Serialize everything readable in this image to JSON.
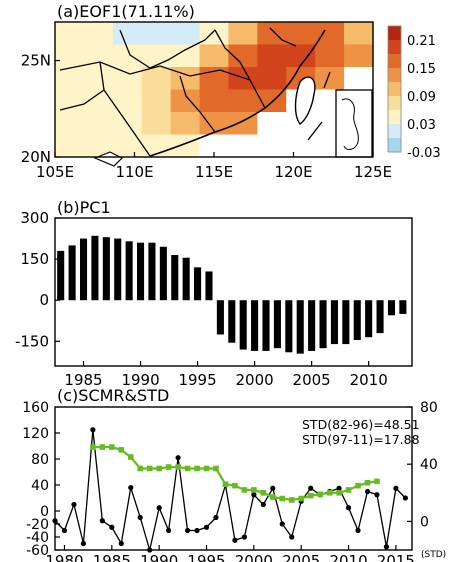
{
  "chart_data": [
    {
      "type": "heatmap",
      "title": "(a)EOF1(71.11%)",
      "x_ticks": [
        "105E",
        "110E",
        "115E",
        "120E",
        "125E"
      ],
      "y_ticks": [
        "20N",
        "25N"
      ],
      "x_range": [
        105,
        125
      ],
      "y_range": [
        20,
        27
      ],
      "colorbar": {
        "ticks": [
          "0.21",
          "0.15",
          "0.09",
          "0.03",
          "-0.03"
        ],
        "levels": [
          0.21,
          0.15,
          0.09,
          0.03,
          -0.03
        ],
        "colors": [
          "#b42512",
          "#d1441c",
          "#e16a2a",
          "#ee9346",
          "#f6bb6a",
          "#fbdd9a",
          "#fff3c8",
          "#d4ecf7",
          "#a6d6ee"
        ]
      },
      "field": [
        [
          0.05,
          0.03,
          0.02,
          0.0,
          0.02,
          0.05,
          0.12,
          0.18,
          0.2,
          0.18,
          0.14
        ],
        [
          0.06,
          0.05,
          0.04,
          0.05,
          0.08,
          0.12,
          0.19,
          0.22,
          0.21,
          0.19,
          0.15
        ],
        [
          0.07,
          0.07,
          0.07,
          0.09,
          0.13,
          0.18,
          0.21,
          0.21,
          0.2,
          0.16,
          null
        ],
        [
          0.06,
          0.07,
          0.08,
          0.11,
          0.15,
          0.19,
          0.2,
          0.19,
          null,
          null,
          null
        ],
        [
          0.05,
          0.06,
          0.07,
          0.09,
          0.12,
          0.15,
          0.16,
          null,
          null,
          null,
          null
        ],
        [
          0.04,
          0.05,
          0.05,
          0.06,
          0.07,
          null,
          null,
          null,
          null,
          null,
          null
        ]
      ]
    },
    {
      "type": "bar",
      "title": "(b)PC1",
      "categories": [
        1983,
        1984,
        1985,
        1986,
        1987,
        1988,
        1989,
        1990,
        1991,
        1992,
        1993,
        1994,
        1995,
        1996,
        1997,
        1998,
        1999,
        2000,
        2001,
        2002,
        2003,
        2004,
        2005,
        2006,
        2007,
        2008,
        2009,
        2010,
        2011,
        2012,
        2013
      ],
      "values": [
        180,
        200,
        225,
        235,
        230,
        225,
        215,
        210,
        210,
        195,
        165,
        155,
        120,
        105,
        -125,
        -155,
        -180,
        -185,
        -185,
        -175,
        -190,
        -195,
        -185,
        -175,
        -160,
        -160,
        -145,
        -135,
        -120,
        -55,
        -50
      ],
      "x_ticks": [
        "1985",
        "1990",
        "1995",
        "2000",
        "2005",
        "2010"
      ],
      "y_ticks": [
        "300",
        "150",
        "0",
        "-150"
      ],
      "ylim": [
        -240,
        300
      ]
    },
    {
      "type": "line",
      "title": "(c)SCMR&STD",
      "x_ticks": [
        "1980",
        "1985",
        "1990",
        "1995",
        "2000",
        "2005",
        "2010",
        "2015"
      ],
      "y_ticks_left": [
        "160",
        "120",
        "80",
        "40",
        "0",
        "-20",
        "-40",
        "-60"
      ],
      "y_ticks_right": [
        "80",
        "40",
        "0"
      ],
      "right_axis_label": "(STD)",
      "annotations": [
        "STD(82-96)=48.51",
        "STD(97-11)=17.88"
      ],
      "ylim_left": [
        -60,
        160
      ],
      "ylim_right": [
        -20,
        80
      ],
      "series": [
        {
          "color": "#000000",
          "axis": "left",
          "x": [
            1979,
            1980,
            1981,
            1982,
            1983,
            1984,
            1985,
            1986,
            1987,
            1988,
            1989,
            1990,
            1991,
            1992,
            1993,
            1994,
            1995,
            1996,
            1997,
            1998,
            1999,
            2000,
            2001,
            2002,
            2003,
            2004,
            2005,
            2006,
            2007,
            2008,
            2009,
            2010,
            2011,
            2012,
            2013,
            2014,
            2015,
            2016
          ],
          "values": [
            -15,
            -30,
            10,
            -50,
            125,
            -15,
            -25,
            -50,
            36,
            -10,
            -60,
            5,
            -30,
            82,
            -30,
            -30,
            -25,
            -10,
            40,
            -45,
            -40,
            25,
            10,
            35,
            -20,
            -40,
            15,
            35,
            25,
            30,
            35,
            5,
            -30,
            30,
            25,
            -55,
            35,
            20
          ]
        },
        {
          "color": "#66bb22",
          "axis": "right",
          "x": [
            1983,
            1984,
            1985,
            1986,
            1987,
            1988,
            1989,
            1990,
            1991,
            1992,
            1993,
            1994,
            1995,
            1996,
            1997,
            1998,
            1999,
            2000,
            2001,
            2002,
            2003,
            2004,
            2005,
            2006,
            2007,
            2008,
            2009,
            2010,
            2011,
            2012,
            2013
          ],
          "values": [
            52,
            52,
            52,
            50,
            45,
            37,
            37,
            37,
            38,
            38,
            37,
            37,
            37,
            37,
            26,
            25,
            22,
            22,
            20,
            17,
            16,
            15,
            16,
            18,
            19,
            20,
            20,
            22,
            25,
            27,
            28
          ]
        }
      ]
    }
  ]
}
